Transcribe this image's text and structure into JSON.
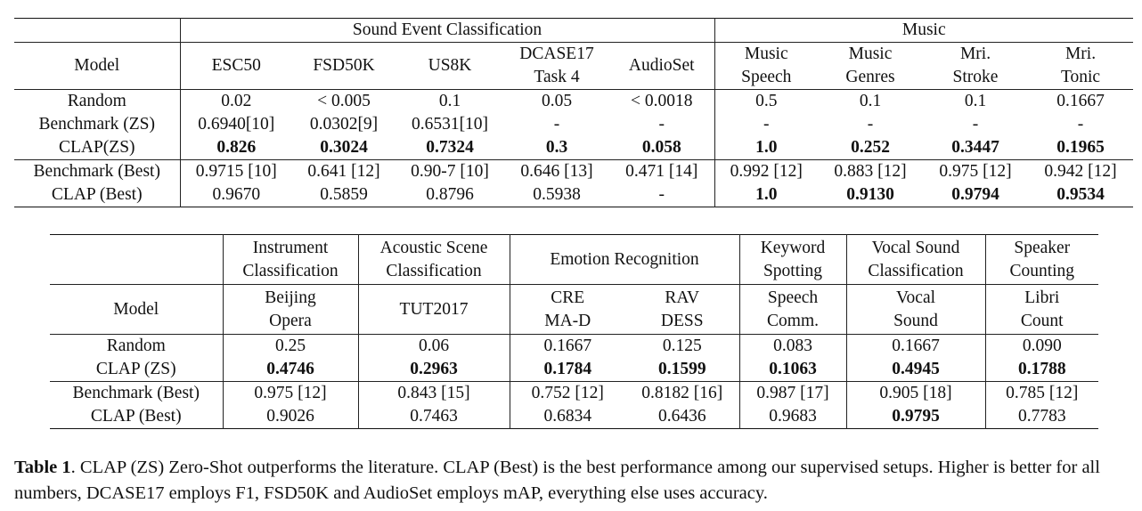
{
  "table1": {
    "group_headers": {
      "sound_event": "Sound Event Classification",
      "music": "Music"
    },
    "model_label": "Model",
    "columns": [
      [
        "ESC50"
      ],
      [
        "FSD50K"
      ],
      [
        "US8K"
      ],
      [
        "DCASE17",
        "Task 4"
      ],
      [
        "AudioSet"
      ],
      [
        "Music",
        "Speech"
      ],
      [
        "Music",
        "Genres"
      ],
      [
        "Mri.",
        "Stroke"
      ],
      [
        "Mri.",
        "Tonic"
      ]
    ],
    "rows": [
      {
        "model": "Random",
        "values": [
          "0.02",
          "< 0.005",
          "0.1",
          "0.05",
          "< 0.0018",
          "0.5",
          "0.1",
          "0.1",
          "0.1667"
        ]
      },
      {
        "model": "Benchmark (ZS)",
        "values": [
          "0.6940[10]",
          "0.0302[9]",
          "0.6531[10]",
          "-",
          "-",
          "-",
          "-",
          "-",
          "-"
        ]
      },
      {
        "model": "CLAP(ZS)",
        "values": [
          "0.826",
          "0.3024",
          "0.7324",
          "0.3",
          "0.058",
          "1.0",
          "0.252",
          "0.3447",
          "0.1965"
        ]
      },
      {
        "model": "Benchmark (Best)",
        "values": [
          "0.9715 [10]",
          "0.641 [12]",
          "0.90-7 [10]",
          "0.646 [13]",
          "0.471 [14]",
          "0.992 [12]",
          "0.883 [12]",
          "0.975 [12]",
          "0.942 [12]"
        ]
      },
      {
        "model": "CLAP (Best)",
        "values": [
          "0.9670",
          "0.5859",
          "0.8796",
          "0.5938",
          "-",
          "1.0",
          "0.9130",
          "0.9794",
          "0.9534"
        ]
      }
    ]
  },
  "table2": {
    "model_label": "Model",
    "tasks": [
      [
        "Instrument",
        "Classification"
      ],
      [
        "Acoustic Scene",
        "Classification"
      ],
      [
        "Emotion Recognition"
      ],
      [
        "Keyword",
        "Spotting"
      ],
      [
        "Vocal Sound",
        "Classification"
      ],
      [
        "Speaker",
        "Counting"
      ]
    ],
    "datasets": [
      [
        "Beijing",
        "Opera"
      ],
      [
        "TUT2017"
      ],
      [
        "CRE",
        "MA-D"
      ],
      [
        "RAV",
        "DESS"
      ],
      [
        "Speech",
        "Comm."
      ],
      [
        "Vocal",
        "Sound"
      ],
      [
        "Libri",
        "Count"
      ]
    ],
    "rows": [
      {
        "model": "Random",
        "values": [
          "0.25",
          "0.06",
          "0.1667",
          "0.125",
          "0.083",
          "0.1667",
          "0.090"
        ]
      },
      {
        "model": "CLAP (ZS)",
        "values": [
          "0.4746",
          "0.2963",
          "0.1784",
          "0.1599",
          "0.1063",
          "0.4945",
          "0.1788"
        ]
      },
      {
        "model": "Benchmark (Best)",
        "values": [
          "0.975 [12]",
          "0.843 [15]",
          "0.752 [12]",
          "0.8182 [16]",
          "0.987 [17]",
          "0.905 [18]",
          "0.785 [12]"
        ]
      },
      {
        "model": "CLAP (Best)",
        "values": [
          "0.9026",
          "0.7463",
          "0.6834",
          "0.6436",
          "0.9683",
          "0.9795",
          "0.7783"
        ]
      }
    ]
  },
  "caption": {
    "label": "Table 1",
    "text": ".  CLAP (ZS) Zero-Shot outperforms the literature. CLAP (Best) is the best performance among our supervised setups. Higher is better for all numbers, DCASE17 employs F1, FSD50K and AudioSet employs mAP, everything else uses accuracy."
  }
}
